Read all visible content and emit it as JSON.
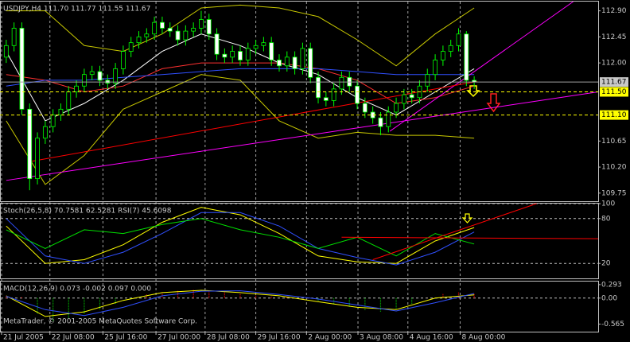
{
  "chart_data": [
    {
      "type": "candlestick",
      "title": "USDJPY,H4 111.70 111.77 111.55 111.67",
      "xlim": [
        -0.8,
        75.9
      ],
      "ylim": [
        109.61,
        113.06
      ],
      "yticks": [
        {
          "value": 112.9,
          "label": "112.90"
        },
        112.45,
        {
          "value": 112,
          "label": "112.00"
        },
        110.65,
        {
          "value": 110.2,
          "label": "110.20"
        },
        109.75
      ],
      "bull_color": "#000000",
      "bear_color": "#ffffff",
      "wick_color": "#00ff00",
      "x": [
        0,
        1,
        2,
        3,
        4,
        5,
        6,
        7,
        8,
        9,
        10,
        11,
        12,
        13,
        14,
        15,
        16,
        17,
        18,
        19,
        20,
        21,
        22,
        23,
        24,
        25,
        26,
        27,
        28,
        29,
        30,
        31,
        32,
        33,
        34,
        35,
        36,
        37,
        38,
        39,
        40,
        41,
        42,
        43,
        44,
        45,
        46,
        47,
        48,
        49,
        50,
        51,
        52,
        53,
        54,
        55,
        56,
        57,
        58,
        59,
        60
      ],
      "open": [
        112.1,
        112.3,
        112.6,
        111.2,
        110.0,
        110.7,
        110.9,
        111.1,
        111.2,
        111.5,
        111.6,
        111.8,
        111.85,
        111.7,
        111.65,
        111.9,
        112.2,
        112.35,
        112.45,
        112.5,
        112.7,
        112.6,
        112.55,
        112.4,
        112.55,
        112.6,
        112.75,
        112.5,
        112.15,
        112.1,
        112.2,
        112.05,
        112.25,
        112.3,
        112.35,
        112.05,
        111.95,
        112.1,
        111.9,
        112.25,
        111.75,
        111.4,
        111.35,
        111.55,
        111.75,
        111.6,
        111.3,
        111.15,
        111.05,
        110.9,
        111.15,
        111.3,
        111.45,
        111.4,
        111.6,
        111.8,
        112.05,
        112.2,
        112.3,
        112.5,
        111.7
      ],
      "high": [
        112.4,
        112.7,
        112.7,
        111.3,
        110.8,
        111.0,
        111.2,
        111.3,
        111.6,
        111.7,
        111.9,
        111.95,
        111.95,
        111.8,
        112.0,
        112.3,
        112.45,
        112.55,
        112.6,
        112.8,
        112.8,
        112.7,
        112.65,
        112.65,
        112.7,
        112.9,
        112.85,
        112.6,
        112.25,
        112.3,
        112.3,
        112.35,
        112.4,
        112.45,
        112.45,
        112.15,
        112.2,
        112.2,
        112.35,
        112.35,
        111.85,
        111.5,
        111.65,
        111.85,
        111.85,
        111.7,
        111.4,
        111.25,
        111.15,
        111.25,
        111.4,
        111.55,
        111.55,
        111.7,
        111.9,
        112.15,
        112.3,
        112.4,
        112.6,
        112.55,
        111.77
      ],
      "low": [
        112.0,
        112.2,
        111.1,
        109.8,
        109.9,
        110.6,
        110.8,
        111.0,
        111.1,
        111.4,
        111.5,
        111.7,
        111.6,
        111.55,
        111.55,
        111.8,
        112.1,
        112.25,
        112.35,
        112.4,
        112.5,
        112.45,
        112.3,
        112.3,
        112.45,
        112.5,
        112.4,
        112.05,
        112.0,
        112.0,
        111.95,
        111.95,
        112.15,
        112.2,
        111.95,
        111.85,
        111.85,
        111.8,
        111.8,
        111.65,
        111.3,
        111.25,
        111.25,
        111.45,
        111.5,
        111.2,
        111.05,
        110.95,
        110.75,
        110.8,
        111.05,
        111.2,
        111.3,
        111.3,
        111.5,
        111.7,
        111.95,
        112.1,
        112.2,
        111.6,
        111.55
      ],
      "close": [
        112.3,
        112.6,
        111.2,
        110.0,
        110.7,
        110.9,
        111.1,
        111.2,
        111.5,
        111.6,
        111.8,
        111.85,
        111.7,
        111.65,
        111.9,
        112.2,
        112.35,
        112.45,
        112.5,
        112.7,
        112.6,
        112.55,
        112.4,
        112.55,
        112.6,
        112.75,
        112.5,
        112.15,
        112.1,
        112.2,
        112.05,
        112.25,
        112.3,
        112.35,
        112.05,
        111.95,
        112.1,
        111.9,
        112.25,
        111.75,
        111.4,
        111.35,
        111.55,
        111.75,
        111.6,
        111.3,
        111.15,
        111.05,
        110.9,
        111.15,
        111.3,
        111.45,
        111.4,
        111.6,
        111.8,
        112.05,
        112.2,
        112.3,
        112.5,
        111.7,
        111.67
      ],
      "series": [
        {
          "color": "#c8c800",
          "x": [
            0,
            5,
            10,
            15,
            20,
            25,
            30,
            35,
            40,
            45,
            50,
            55,
            60
          ],
          "values": [
            112.9,
            112.9,
            112.3,
            112.2,
            112.5,
            112.95,
            113.0,
            112.95,
            112.8,
            112.4,
            111.95,
            112.5,
            112.95
          ]
        },
        {
          "color": "#c8c800",
          "x": [
            0,
            5,
            10,
            15,
            20,
            25,
            30,
            35,
            40,
            45,
            50,
            55,
            60
          ],
          "values": [
            111.0,
            109.9,
            110.4,
            111.2,
            111.5,
            111.8,
            111.7,
            111.0,
            110.7,
            110.8,
            110.75,
            110.75,
            110.7
          ]
        },
        {
          "color": "#ffffff",
          "x": [
            0,
            5,
            10,
            15,
            20,
            25,
            30,
            35,
            40,
            45,
            50,
            55,
            60
          ],
          "values": [
            112.2,
            111.0,
            111.3,
            111.7,
            112.2,
            112.5,
            112.3,
            112.0,
            111.8,
            111.4,
            111.1,
            111.5,
            111.9
          ]
        },
        {
          "color": "#ff3030",
          "x": [
            0,
            5,
            10,
            15,
            20,
            25,
            30,
            35,
            40,
            45,
            50,
            55,
            60
          ],
          "values": [
            111.8,
            111.7,
            111.5,
            111.6,
            111.9,
            112.0,
            112.0,
            112.0,
            111.9,
            111.7,
            111.3,
            111.4,
            111.6
          ]
        },
        {
          "color": "#3050ff",
          "x": [
            0,
            5,
            10,
            15,
            20,
            25,
            30,
            35,
            40,
            45,
            50,
            55,
            60
          ],
          "values": [
            111.6,
            111.7,
            111.7,
            111.75,
            111.8,
            111.85,
            111.9,
            111.9,
            111.9,
            111.85,
            111.8,
            111.8,
            111.8
          ]
        }
      ],
      "trendlines": [
        {
          "color": "#ff00ff",
          "x": [
            0,
            75.9
          ],
          "values": [
            109.97,
            111.5
          ]
        },
        {
          "color": "#ff00ff",
          "x": [
            49.2,
            72.7
          ],
          "values": [
            110.82,
            113.06
          ]
        },
        {
          "color": "#ff0000",
          "x": [
            3.3,
            60.4
          ],
          "values": [
            110.3,
            111.68
          ]
        }
      ],
      "hlines": [
        {
          "value": 111.67,
          "color": "#a0a0a0",
          "label_bg": "#c8c8c8"
        },
        {
          "value": 111.5,
          "label": "111.50",
          "color": "#ffff00",
          "label_bg": "#ffff00"
        },
        {
          "value": 111.1,
          "label": "111.10",
          "color": "#ffff00",
          "label_bg": "#ffff00"
        }
      ]
    },
    {
      "type": "oscillator",
      "title": "Stoch(26,5,8) 70.7581 62.5281 RSI(7) 45.6098",
      "ylim": [
        0,
        100
      ],
      "yticks": [
        100,
        80,
        20
      ],
      "grid": true,
      "series": [
        {
          "color": "#ffff00",
          "x": [
            0,
            5,
            10,
            15,
            20,
            25,
            30,
            35,
            40,
            45,
            50,
            55,
            60
          ],
          "values": [
            70,
            20,
            25,
            45,
            75,
            95,
            85,
            60,
            30,
            22,
            20,
            50,
            68
          ]
        },
        {
          "color": "#3050ff",
          "x": [
            0,
            5,
            10,
            15,
            20,
            25,
            30,
            35,
            40,
            45,
            50,
            55,
            60
          ],
          "values": [
            80,
            30,
            20,
            35,
            60,
            88,
            88,
            70,
            40,
            28,
            18,
            35,
            62
          ]
        },
        {
          "color": "#00e000",
          "x": [
            0,
            5,
            10,
            15,
            20,
            25,
            30,
            35,
            40,
            45,
            50,
            55,
            60
          ],
          "values": [
            65,
            40,
            65,
            60,
            72,
            80,
            65,
            55,
            40,
            55,
            30,
            60,
            46
          ]
        }
      ],
      "trendlines": [
        {
          "color": "#ff0000",
          "x": [
            43,
            75.9
          ],
          "values": [
            55,
            53
          ]
        },
        {
          "color": "#ff0000",
          "x": [
            47,
            68
          ],
          "values": [
            25,
            100
          ]
        }
      ]
    },
    {
      "type": "macd",
      "title": "MACD(12,26,9) 0.073 -0.002 0.097 0.000",
      "ylim": [
        -0.73,
        0.36
      ],
      "yticks": [
        0.293,
        {
          "value": 0,
          "label": "0.00"
        },
        -0.565
      ],
      "zero_line": true,
      "histogram": {
        "pos_color": "#ff0000",
        "neg_color": "#00c000",
        "x": [
          0,
          2,
          4,
          6,
          8,
          10,
          12,
          14,
          16,
          18,
          20,
          22,
          24,
          26,
          28,
          30,
          32,
          34,
          36,
          38,
          40,
          42,
          44,
          46,
          48,
          50,
          52,
          54,
          56,
          58,
          60
        ],
        "values": [
          0.05,
          0.02,
          -0.35,
          -0.5,
          -0.45,
          -0.35,
          -0.25,
          -0.12,
          -0.02,
          0.08,
          0.14,
          0.17,
          0.18,
          0.17,
          0.14,
          0.1,
          0.06,
          0.04,
          0.02,
          0.0,
          -0.05,
          -0.12,
          -0.2,
          -0.26,
          -0.3,
          -0.25,
          -0.12,
          0.0,
          0.1,
          0.14,
          0.1
        ]
      },
      "series": [
        {
          "color": "#ffff00",
          "x": [
            0,
            5,
            10,
            15,
            20,
            25,
            30,
            35,
            40,
            45,
            50,
            55,
            60
          ],
          "values": [
            0.05,
            -0.4,
            -0.3,
            -0.05,
            0.12,
            0.17,
            0.12,
            0.05,
            -0.08,
            -0.2,
            -0.25,
            0.0,
            0.07
          ]
        },
        {
          "color": "#3050ff",
          "x": [
            0,
            5,
            10,
            15,
            20,
            25,
            30,
            35,
            40,
            45,
            50,
            55,
            60
          ],
          "values": [
            0.04,
            -0.25,
            -0.38,
            -0.2,
            0.05,
            0.15,
            0.16,
            0.08,
            -0.02,
            -0.15,
            -0.28,
            -0.1,
            0.1
          ]
        }
      ],
      "xticks": [
        {
          "value": -0.6,
          "label": "21 Jul 2005"
        },
        {
          "value": 5.6,
          "label": "22 Jul 08:00"
        },
        {
          "value": 12.4,
          "label": "25 Jul 16:00"
        },
        {
          "value": 19.2,
          "label": "27 Jul 00:00"
        },
        {
          "value": 25.5,
          "label": "28 Jul 08:00"
        },
        {
          "value": 32,
          "label": "29 Jul 16:00"
        },
        {
          "value": 38.5,
          "label": "2 Aug 00:00"
        },
        {
          "value": 45.1,
          "label": "3 Aug 08:00"
        },
        {
          "value": 51.5,
          "label": "4 Aug 16:00"
        },
        {
          "value": 58.2,
          "label": "8 Aug 00:00"
        }
      ],
      "footer": "MetaTrader, © 2001-2005 MetaQuotes Software Corp."
    }
  ]
}
